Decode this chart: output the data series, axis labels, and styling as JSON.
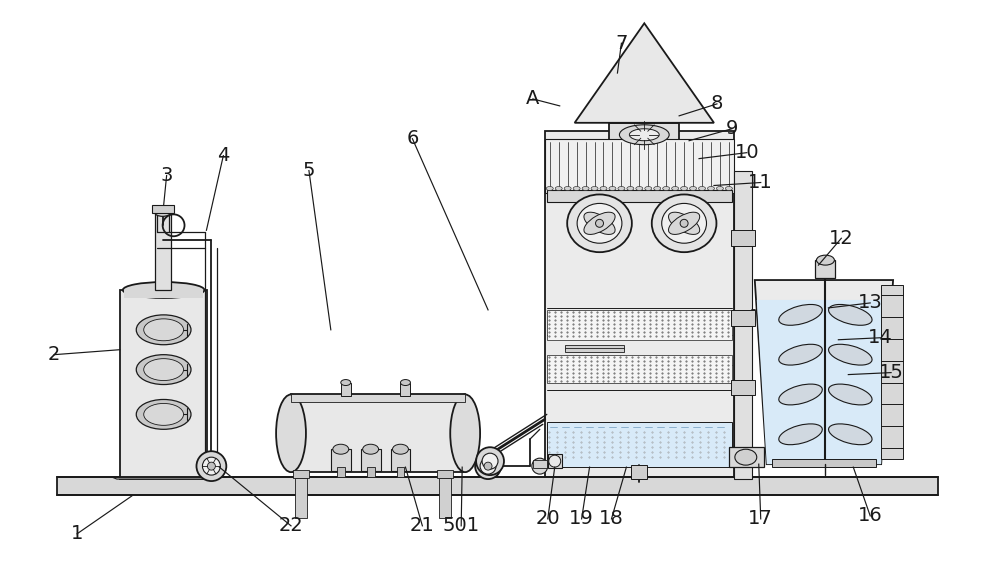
{
  "bg_color": "#ffffff",
  "line_color": "#1a1a1a",
  "figsize": [
    10.0,
    5.76
  ],
  "dpi": 100,
  "annotations": [
    [
      "1",
      130,
      497,
      75,
      535
    ],
    [
      "2",
      118,
      350,
      52,
      355
    ],
    [
      "3",
      162,
      205,
      165,
      175
    ],
    [
      "4",
      205,
      230,
      222,
      155
    ],
    [
      "5",
      330,
      330,
      308,
      170
    ],
    [
      "6",
      488,
      310,
      412,
      138
    ],
    [
      "7",
      618,
      72,
      622,
      42
    ],
    [
      "A",
      560,
      105,
      533,
      98
    ],
    [
      "8",
      680,
      115,
      718,
      103
    ],
    [
      "9",
      690,
      140,
      733,
      128
    ],
    [
      "10",
      700,
      158,
      748,
      152
    ],
    [
      "11",
      715,
      185,
      762,
      182
    ],
    [
      "12",
      820,
      265,
      843,
      238
    ],
    [
      "13",
      830,
      308,
      872,
      303
    ],
    [
      "14",
      840,
      340,
      882,
      338
    ],
    [
      "15",
      850,
      375,
      893,
      373
    ],
    [
      "16",
      855,
      468,
      872,
      517
    ],
    [
      "17",
      760,
      465,
      762,
      520
    ],
    [
      "18",
      627,
      468,
      612,
      520
    ],
    [
      "19",
      590,
      468,
      582,
      520
    ],
    [
      "20",
      555,
      468,
      548,
      520
    ],
    [
      "21",
      405,
      468,
      422,
      527
    ],
    [
      "501",
      462,
      468,
      461,
      527
    ],
    [
      "22",
      218,
      468,
      290,
      527
    ]
  ]
}
